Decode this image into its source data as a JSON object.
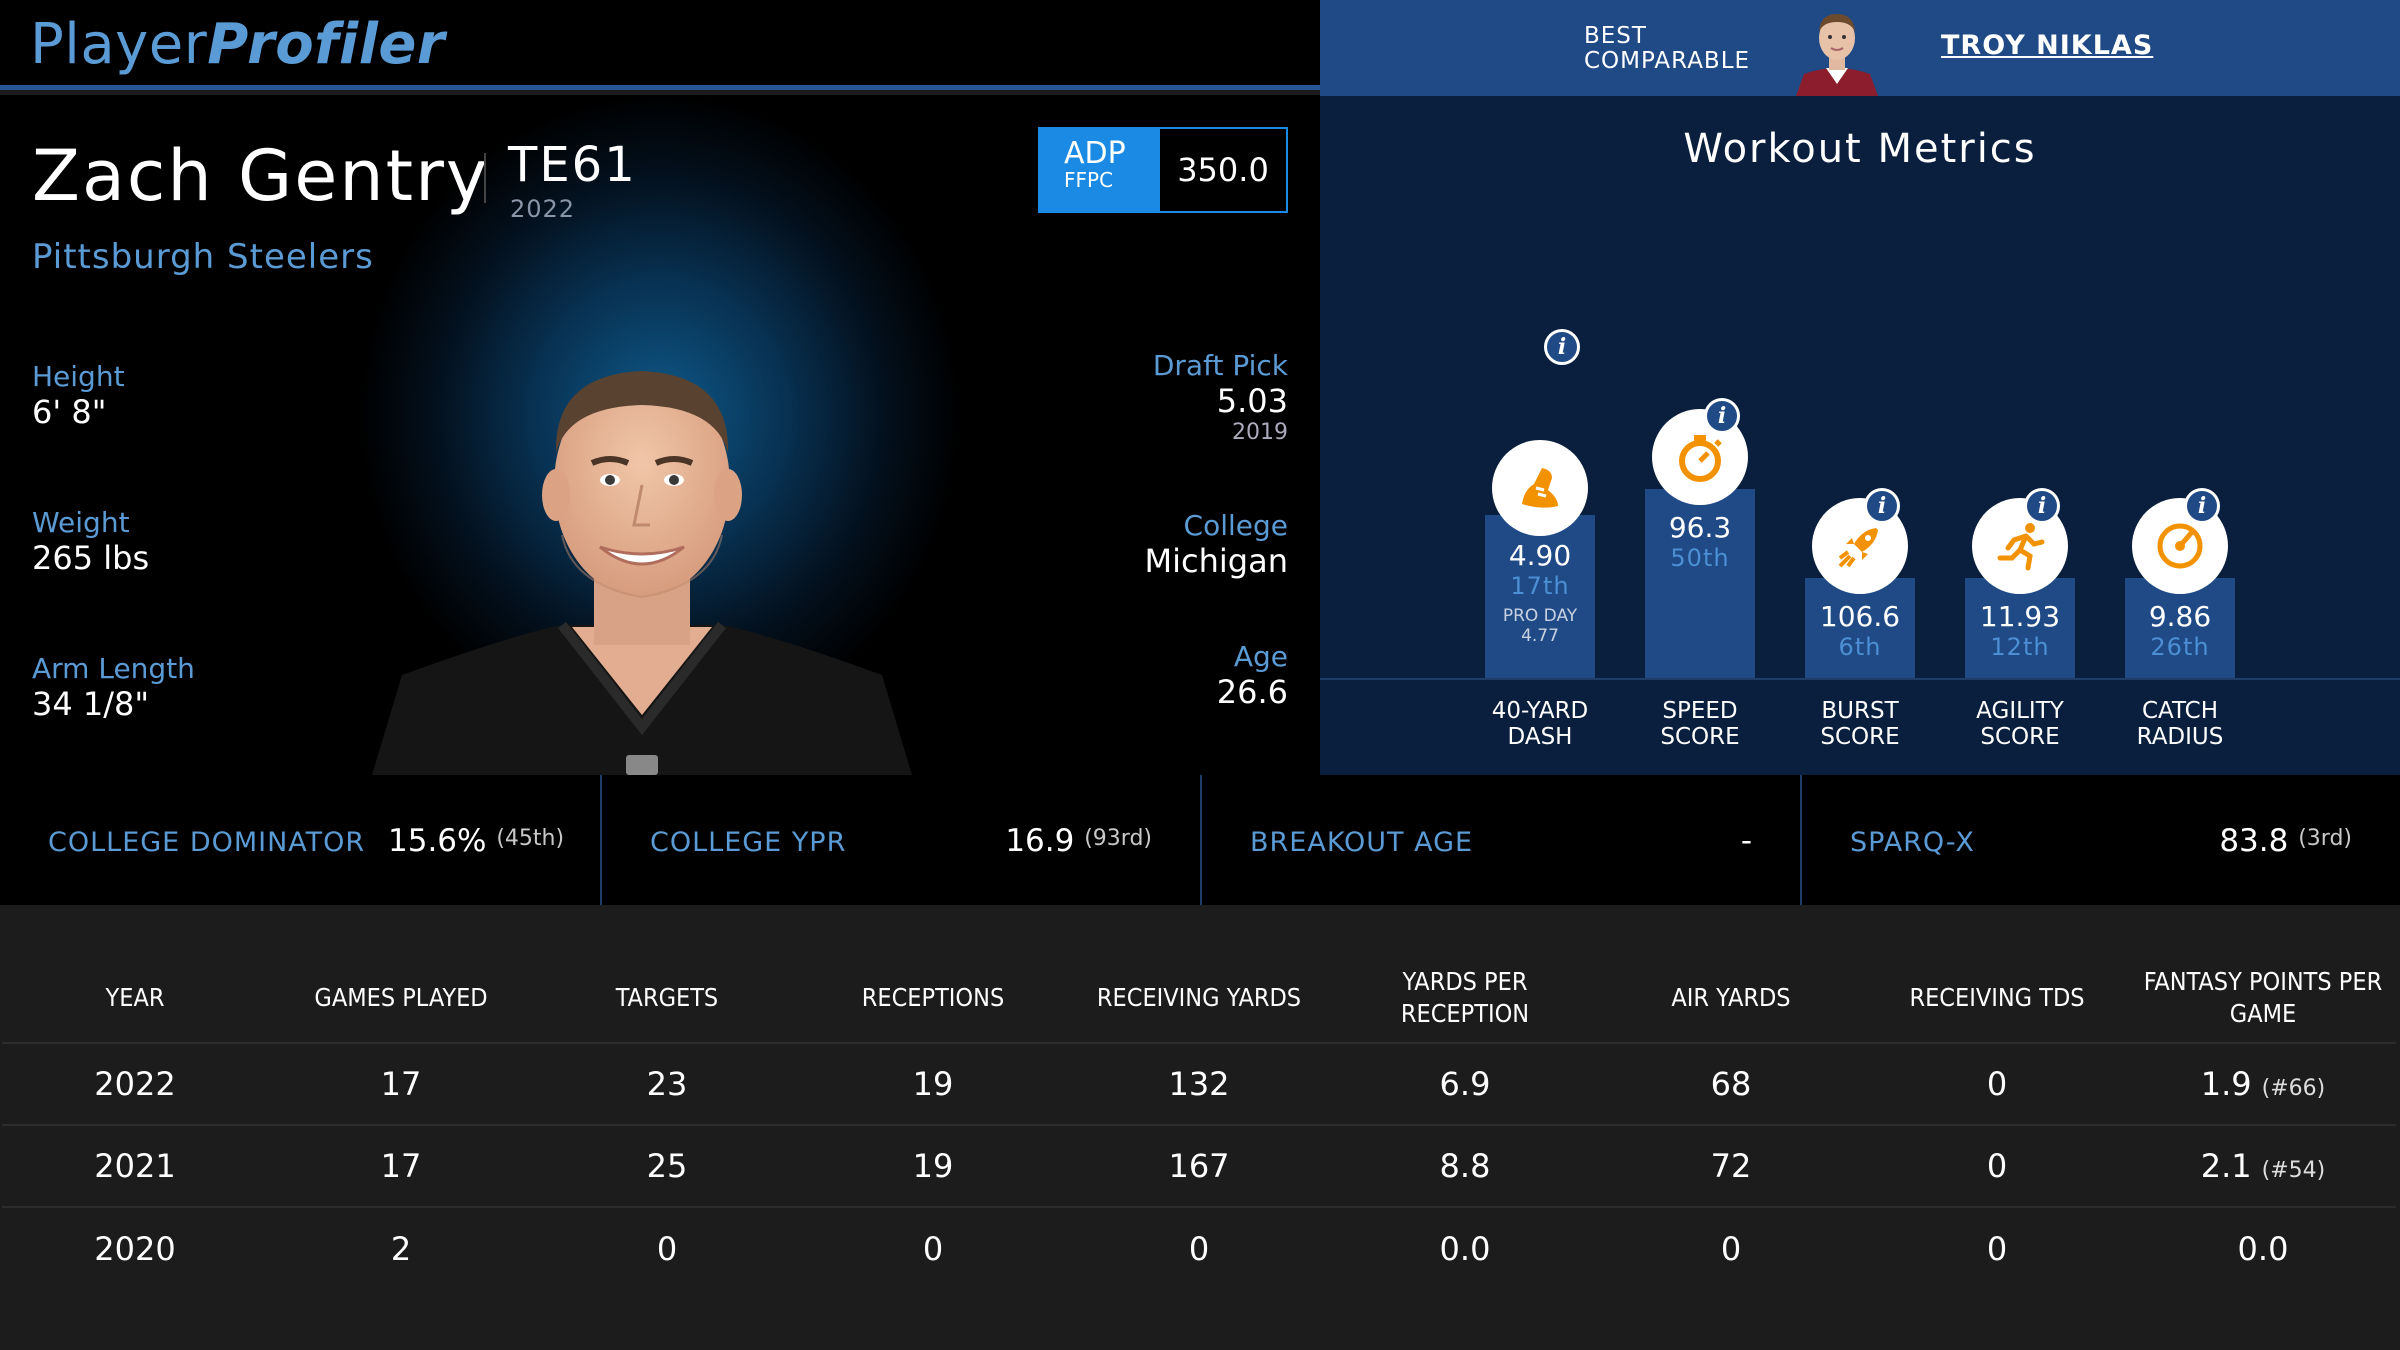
{
  "header": {
    "logo_part1": "Player",
    "logo_part2": "Profiler",
    "comparable_label": "BEST COMPARABLE",
    "comparable_name": "TROY NIKLAS"
  },
  "player": {
    "name": "Zach Gentry",
    "position": "TE61",
    "season": "2022",
    "team": "Pittsburgh Steelers",
    "adp": {
      "label": "ADP",
      "source": "FFPC",
      "value": "350.0"
    },
    "left_stats": [
      {
        "label": "Height",
        "value": "6' 8\""
      },
      {
        "label": "Weight",
        "value": "265 lbs"
      },
      {
        "label": "Arm Length",
        "value": "34 1/8\""
      }
    ],
    "right_stats": [
      {
        "label": "Draft Pick",
        "value": "5.03",
        "sub": "2019"
      },
      {
        "label": "College",
        "value": "Michigan"
      },
      {
        "label": "Age",
        "value": "26.6"
      }
    ]
  },
  "workout": {
    "title": "Workout Metrics",
    "info_glyph": "i",
    "metrics": [
      {
        "label": "40-YARD DASH",
        "value": "4.90",
        "percentile": "17th",
        "percentile_value": 17,
        "pro_day_label": "PRO DAY",
        "pro_day_value": "4.77",
        "icon": "running-shoe-icon"
      },
      {
        "label": "SPEED SCORE",
        "value": "96.3",
        "percentile": "50th",
        "percentile_value": 50,
        "icon": "stopwatch-icon"
      },
      {
        "label": "BURST SCORE",
        "value": "106.6",
        "percentile": "6th",
        "percentile_value": 6,
        "icon": "rocket-icon"
      },
      {
        "label": "AGILITY SCORE",
        "value": "11.93",
        "percentile": "12th",
        "percentile_value": 12,
        "icon": "running-man-icon"
      },
      {
        "label": "CATCH RADIUS",
        "value": "9.86",
        "percentile": "26th",
        "percentile_value": 26,
        "icon": "radar-icon"
      }
    ]
  },
  "college": [
    {
      "label": "COLLEGE DOMINATOR",
      "value": "15.6%",
      "rank": "(45th)"
    },
    {
      "label": "COLLEGE YPR",
      "value": "16.9",
      "rank": "(93rd)"
    },
    {
      "label": "BREAKOUT AGE",
      "value": "-",
      "rank": ""
    },
    {
      "label": "SPARQ-X",
      "value": "83.8",
      "rank": "(3rd)"
    }
  ],
  "stats_table": {
    "headers": [
      "YEAR",
      "GAMES PLAYED",
      "TARGETS",
      "RECEPTIONS",
      "RECEIVING YARDS",
      "YARDS PER RECEPTION",
      "AIR YARDS",
      "RECEIVING TDS",
      "FANTASY POINTS PER GAME"
    ],
    "rows": [
      {
        "cells": [
          "2022",
          "17",
          "23",
          "19",
          "132",
          "6.9",
          "68",
          "0",
          "1.9"
        ],
        "rank": "(#66)"
      },
      {
        "cells": [
          "2021",
          "17",
          "25",
          "19",
          "167",
          "8.8",
          "72",
          "0",
          "2.1"
        ],
        "rank": "(#54)"
      },
      {
        "cells": [
          "2020",
          "2",
          "0",
          "0",
          "0",
          "0.0",
          "0",
          "0",
          "0.0"
        ],
        "rank": ""
      }
    ]
  },
  "colors": {
    "accent_blue": "#5b9bd5",
    "bar_blue": "#1f4a86",
    "adp_blue": "#1b8ae4",
    "icon_orange": "#f39200"
  }
}
